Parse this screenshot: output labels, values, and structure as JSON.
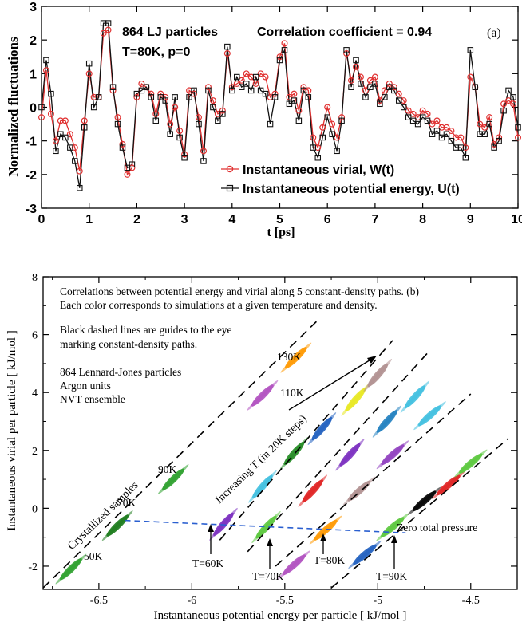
{
  "chart_data": [
    {
      "type": "line",
      "panel_label": "(a)",
      "xlabel": "t [ps]",
      "ylabel": "Normalized fluctuations",
      "xlim": [
        0,
        10
      ],
      "ylim": [
        -3,
        3
      ],
      "xticks": [
        0,
        1,
        2,
        3,
        4,
        5,
        6,
        7,
        8,
        9,
        10
      ],
      "yticks": [
        -3,
        -2,
        -1,
        0,
        1,
        2,
        3
      ],
      "annotations": {
        "system": "864 LJ particles",
        "conditions": "T=80K, p=0",
        "correlation": "Correlation coefficient = 0.94"
      },
      "legend_position": "bottom-center",
      "colors": {
        "virial": "#e03030",
        "energy": "#111111"
      },
      "series": [
        {
          "name": "Instantaneous virial, W(t)",
          "marker": "circle",
          "x": [
            0.0,
            0.1,
            0.2,
            0.3,
            0.4,
            0.5,
            0.6,
            0.7,
            0.8,
            0.9,
            1.0,
            1.1,
            1.2,
            1.3,
            1.4,
            1.5,
            1.6,
            1.7,
            1.8,
            1.9,
            2.0,
            2.1,
            2.2,
            2.3,
            2.4,
            2.5,
            2.6,
            2.7,
            2.8,
            2.9,
            3.0,
            3.1,
            3.2,
            3.3,
            3.4,
            3.5,
            3.6,
            3.7,
            3.8,
            3.9,
            4.0,
            4.1,
            4.2,
            4.3,
            4.4,
            4.5,
            4.6,
            4.7,
            4.8,
            4.9,
            5.0,
            5.1,
            5.2,
            5.3,
            5.4,
            5.5,
            5.6,
            5.7,
            5.8,
            5.9,
            6.0,
            6.1,
            6.2,
            6.3,
            6.4,
            6.5,
            6.6,
            6.7,
            6.8,
            6.9,
            7.0,
            7.1,
            7.2,
            7.3,
            7.4,
            7.5,
            7.6,
            7.7,
            7.8,
            7.9,
            8.0,
            8.1,
            8.2,
            8.3,
            8.4,
            8.5,
            8.6,
            8.7,
            8.8,
            8.9,
            9.0,
            9.1,
            9.2,
            9.3,
            9.4,
            9.5,
            9.6,
            9.7,
            9.8,
            9.9,
            10.0
          ],
          "y": [
            -0.3,
            1.1,
            -0.2,
            -1.0,
            -0.4,
            -0.4,
            -0.8,
            -1.2,
            -1.9,
            -0.4,
            1.0,
            0.3,
            0.3,
            2.2,
            2.3,
            0.5,
            -0.3,
            -1.1,
            -2.0,
            -1.8,
            0.3,
            0.7,
            0.6,
            0.4,
            -0.2,
            0.4,
            0.3,
            -0.5,
            0.0,
            -0.7,
            -1.4,
            0.5,
            0.4,
            -0.3,
            -1.3,
            0.6,
            0.2,
            -0.2,
            -0.1,
            1.6,
            0.6,
            0.7,
            0.8,
            1.0,
            0.9,
            0.7,
            1.0,
            0.9,
            0.3,
            0.4,
            1.5,
            1.9,
            0.3,
            0.4,
            -0.1,
            0.6,
            0.5,
            -0.9,
            -1.2,
            -0.6,
            0.0,
            -0.5,
            -0.9,
            -0.3,
            1.6,
            0.8,
            1.2,
            0.9,
            0.5,
            0.8,
            0.9,
            0.2,
            0.5,
            0.7,
            0.6,
            0.4,
            0.2,
            -0.1,
            -0.2,
            -0.3,
            -0.1,
            -0.2,
            -0.5,
            -0.4,
            -0.6,
            -0.6,
            -0.7,
            -0.9,
            -0.9,
            -1.2,
            0.9,
            0.6,
            -0.5,
            -0.6,
            -0.3,
            -1.1,
            -0.9,
            0.1,
            0.2,
            0.1,
            -0.9
          ]
        },
        {
          "name": "Instantaneous potential energy, U(t)",
          "marker": "square",
          "x": [
            0.0,
            0.1,
            0.2,
            0.3,
            0.4,
            0.5,
            0.6,
            0.7,
            0.8,
            0.9,
            1.0,
            1.1,
            1.2,
            1.3,
            1.4,
            1.5,
            1.6,
            1.7,
            1.8,
            1.9,
            2.0,
            2.1,
            2.2,
            2.3,
            2.4,
            2.5,
            2.6,
            2.7,
            2.8,
            2.9,
            3.0,
            3.1,
            3.2,
            3.3,
            3.4,
            3.5,
            3.6,
            3.7,
            3.8,
            3.9,
            4.0,
            4.1,
            4.2,
            4.3,
            4.4,
            4.5,
            4.6,
            4.7,
            4.8,
            4.9,
            5.0,
            5.1,
            5.2,
            5.3,
            5.4,
            5.5,
            5.6,
            5.7,
            5.8,
            5.9,
            6.0,
            6.1,
            6.2,
            6.3,
            6.4,
            6.5,
            6.6,
            6.7,
            6.8,
            6.9,
            7.0,
            7.1,
            7.2,
            7.3,
            7.4,
            7.5,
            7.6,
            7.7,
            7.8,
            7.9,
            8.0,
            8.1,
            8.2,
            8.3,
            8.4,
            8.5,
            8.6,
            8.7,
            8.8,
            8.9,
            9.0,
            9.1,
            9.2,
            9.3,
            9.4,
            9.5,
            9.6,
            9.7,
            9.8,
            9.9,
            10.0
          ],
          "y": [
            0.0,
            1.4,
            0.4,
            -1.3,
            -0.8,
            -0.9,
            -1.2,
            -1.6,
            -2.4,
            -0.6,
            1.3,
            0.0,
            0.3,
            2.5,
            2.5,
            0.6,
            -0.5,
            -1.2,
            -1.8,
            -1.7,
            0.4,
            0.5,
            0.6,
            0.3,
            -0.4,
            0.3,
            0.2,
            -0.8,
            0.3,
            -0.9,
            -1.5,
            0.3,
            0.5,
            -0.5,
            -1.6,
            0.5,
            0.0,
            -0.4,
            -0.2,
            1.8,
            0.5,
            0.9,
            0.6,
            0.7,
            0.5,
            0.9,
            0.5,
            0.4,
            -0.5,
            0.3,
            1.4,
            1.7,
            0.1,
            0.2,
            -0.4,
            0.5,
            0.3,
            -1.2,
            -1.5,
            -0.9,
            -0.3,
            -0.8,
            -1.3,
            -0.4,
            1.7,
            0.6,
            1.4,
            0.7,
            0.3,
            0.6,
            0.7,
            0.1,
            0.3,
            0.6,
            0.5,
            0.2,
            0.0,
            -0.3,
            -0.4,
            -0.5,
            -0.3,
            -0.4,
            -0.8,
            -0.7,
            -0.9,
            -0.8,
            -1.0,
            -1.2,
            -1.2,
            -1.5,
            1.7,
            0.6,
            -0.8,
            -0.8,
            -0.5,
            -1.2,
            -1.0,
            -0.1,
            0.5,
            0.3,
            -0.6
          ]
        }
      ]
    },
    {
      "type": "scatter",
      "panel_label": "(b)",
      "xlabel": "Instantaneous potential energy per particle [ kJ/mol ]",
      "ylabel": "Instantaneous virial per particle [ kJ/mol ]",
      "xlim": [
        -6.8,
        -4.25
      ],
      "ylim": [
        -2.8,
        8
      ],
      "xticks": [
        -6.5,
        -6,
        -5.5,
        -5,
        -4.5
      ],
      "yticks": [
        -2,
        0,
        2,
        4,
        6,
        8
      ],
      "texts": {
        "line1": "Correlations between potential energy and virial along 5 constant-density paths. (b)",
        "line2": "Each color corresponds to simulations at a given temperature and density.",
        "guide1": "Black dashed lines are guides to the eye",
        "guide2": "marking constant-density paths.",
        "info1": "864 Lennard-Jones particles",
        "info2": "Argon units",
        "info3": "NVT ensemble",
        "crystallized": "Crystallized samples",
        "increasing": "Increasing T (in 20K steps)",
        "zero_pressure": "Zero total pressure",
        "label_130k": "130K",
        "label_110k": "110K",
        "label_90k": "90K",
        "label_70k": "70K",
        "label_50k": "50K",
        "label_t60": "T=60K",
        "label_t70": "T=70K",
        "label_t80": "T=80K",
        "label_t90": "T=90K"
      },
      "dashed_paths": [
        {
          "from": [
            -6.8,
            -2.75
          ],
          "to": [
            -5.33,
            6.45
          ]
        },
        {
          "from": [
            -5.85,
            -1.1
          ],
          "to": [
            -4.92,
            5.8
          ]
        },
        {
          "from": [
            -5.7,
            -1.5
          ],
          "to": [
            -4.72,
            5.45
          ]
        },
        {
          "from": [
            -5.55,
            -2.0
          ],
          "to": [
            -4.5,
            3.95
          ]
        },
        {
          "from": [
            -5.25,
            -2.75
          ],
          "to": [
            -4.3,
            2.4
          ]
        }
      ],
      "zero_pressure_line": {
        "from": [
          -6.36,
          -0.42
        ],
        "to": [
          -4.85,
          -0.85
        ]
      },
      "clusters": [
        {
          "path": 1,
          "x": -6.65,
          "y": -2.1,
          "color": "#2ca02c"
        },
        {
          "path": 1,
          "x": -6.4,
          "y": -0.6,
          "color": "#1a7a1a"
        },
        {
          "path": 1,
          "x": -6.1,
          "y": 1.0,
          "color": "#2ca02c"
        },
        {
          "path": 1,
          "x": -5.62,
          "y": 3.9,
          "color": "#b050c0"
        },
        {
          "path": 1,
          "x": -5.44,
          "y": 5.2,
          "color": "#ff9900"
        },
        {
          "path": 2,
          "x": -5.83,
          "y": -0.55,
          "color": "#7a2ec0"
        },
        {
          "path": 2,
          "x": -5.62,
          "y": 0.75,
          "color": "#40c0e0"
        },
        {
          "path": 2,
          "x": -5.45,
          "y": 1.9,
          "color": "#228b22"
        },
        {
          "path": 2,
          "x": -5.3,
          "y": 2.75,
          "color": "#1f5fbf"
        },
        {
          "path": 2,
          "x": -5.12,
          "y": 3.75,
          "color": "#e8e820"
        },
        {
          "path": 2,
          "x": -5.0,
          "y": 4.6,
          "color": "#b09090"
        },
        {
          "path": 3,
          "x": -5.6,
          "y": -0.65,
          "color": "#5ac83c"
        },
        {
          "path": 3,
          "x": -5.35,
          "y": 0.6,
          "color": "#e02020"
        },
        {
          "path": 3,
          "x": -5.15,
          "y": 1.85,
          "color": "#7a2ec0"
        },
        {
          "path": 3,
          "x": -4.95,
          "y": 3.0,
          "color": "#2080c0"
        },
        {
          "path": 3,
          "x": -4.8,
          "y": 3.85,
          "color": "#40c0e0"
        },
        {
          "path": 4,
          "x": -5.45,
          "y": -1.95,
          "color": "#b050c0"
        },
        {
          "path": 4,
          "x": -5.28,
          "y": -0.75,
          "color": "#ff9900"
        },
        {
          "path": 4,
          "x": -5.1,
          "y": 0.6,
          "color": "#b09090"
        },
        {
          "path": 4,
          "x": -4.92,
          "y": 1.85,
          "color": "#9040c0"
        },
        {
          "path": 4,
          "x": -4.72,
          "y": 3.2,
          "color": "#40c0e0"
        },
        {
          "path": 5,
          "x": -5.07,
          "y": -1.6,
          "color": "#1f5fbf"
        },
        {
          "path": 5,
          "x": -4.92,
          "y": -0.65,
          "color": "#5ac83c"
        },
        {
          "path": 5,
          "x": -4.75,
          "y": 0.25,
          "color": "#000000"
        },
        {
          "path": 5,
          "x": -4.62,
          "y": 0.8,
          "color": "#e02020"
        },
        {
          "path": 5,
          "x": -4.5,
          "y": 1.55,
          "color": "#5ac83c"
        }
      ]
    }
  ]
}
